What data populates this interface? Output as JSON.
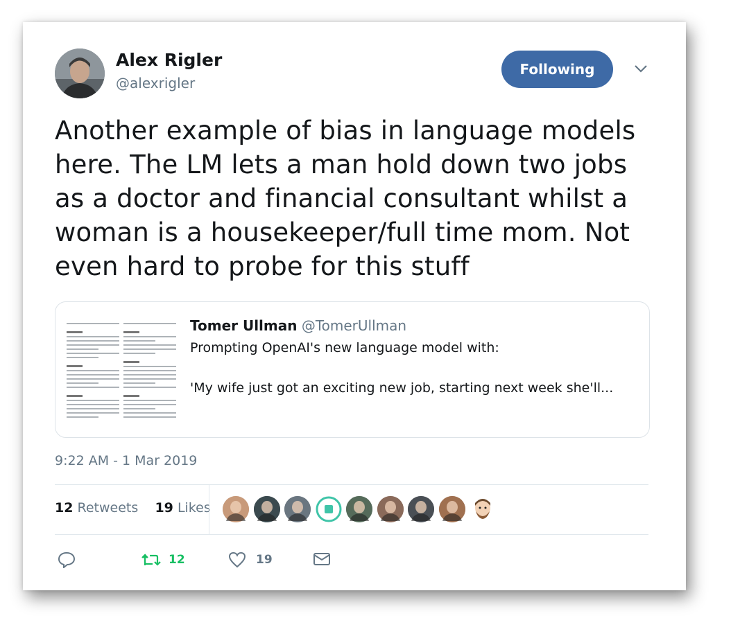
{
  "author": {
    "name": "Alex Rigler",
    "handle": "@alexrigler"
  },
  "follow_button": {
    "label": "Following",
    "color": "#3e6aa6"
  },
  "tweet": {
    "lines": [
      "Another example of bias in language models",
      "here. The LM lets a man hold down two jobs",
      "as a doctor and financial consultant whilst a",
      "woman is a housekeeper/full time mom. Not",
      "even hard to probe for this stuff"
    ]
  },
  "quoted": {
    "name": "Tomer Ullman",
    "handle": "@TomerUllman",
    "line1": "Prompting OpenAI's new language model with:",
    "line2": "'My wife just got an exciting new job, starting next week she'll..."
  },
  "timestamp": "9:22 AM - 1 Mar 2019",
  "stats": {
    "retweets_count": "12",
    "retweets_label": "Retweets",
    "likes_count": "19",
    "likes_label": "Likes"
  },
  "likers": [
    {
      "icon": "avatar-1",
      "color": "#c89a7a"
    },
    {
      "icon": "avatar-2",
      "color": "#3b4a4f"
    },
    {
      "icon": "avatar-3",
      "color": "#6a7680"
    },
    {
      "icon": "retweet-bot-avatar",
      "color": "#3fc4a8"
    },
    {
      "icon": "avatar-5",
      "color": "#556b5a"
    },
    {
      "icon": "avatar-6",
      "color": "#8a6a5a"
    },
    {
      "icon": "avatar-7",
      "color": "#4a4f55"
    },
    {
      "icon": "avatar-8",
      "color": "#a07050"
    },
    {
      "icon": "emoji-avatar",
      "color": "#f2d2b6"
    }
  ],
  "actions": {
    "retweet_count": "12",
    "like_count": "19",
    "retweet_color": "#17bf63"
  }
}
